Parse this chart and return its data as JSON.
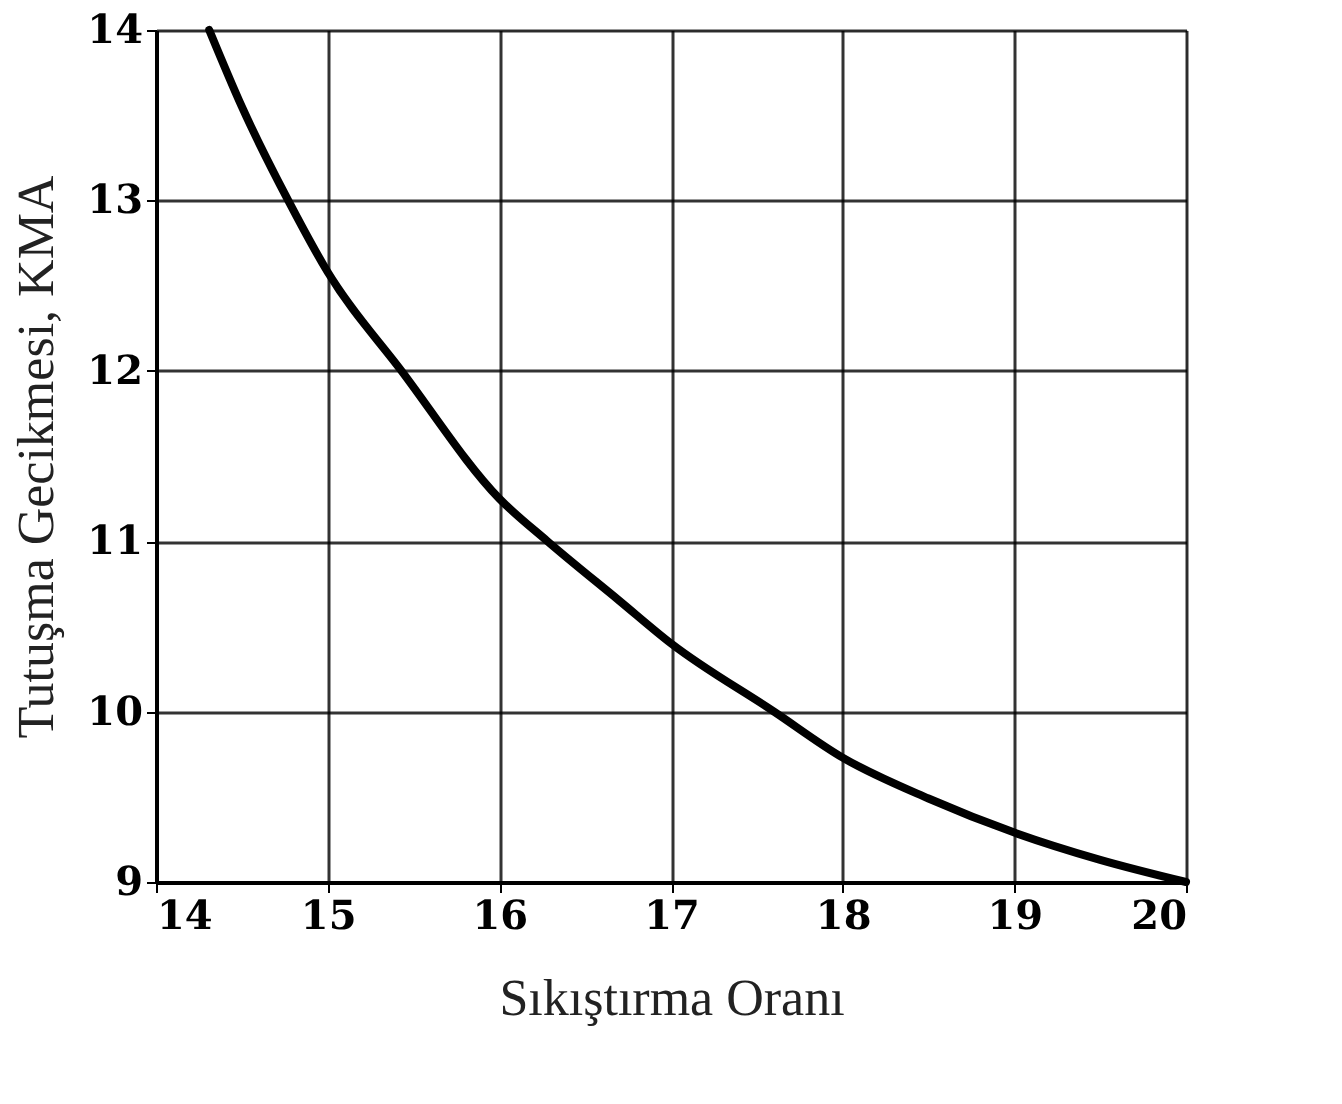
{
  "chart_data": {
    "type": "line",
    "xlabel": "Sıkıştırma Oranı",
    "ylabel": "Tutuşma Gecikmesi, KMA",
    "x": [
      14.31,
      14.5,
      14.77,
      15,
      15.43,
      16,
      16.28,
      16.7,
      17,
      17.6,
      18,
      18.5,
      19,
      19.5,
      20
    ],
    "series": [
      {
        "color": "#000000",
        "values": [
          14,
          13.55,
          13,
          12.58,
          12,
          11.25,
          11,
          10.65,
          10.4,
          10,
          9.73,
          9.49,
          9.29,
          9.13,
          9.0
        ]
      }
    ],
    "xlim": [
      14,
      20
    ],
    "ylim": [
      9,
      14
    ],
    "xticks": [
      14,
      15,
      16,
      17,
      18,
      19,
      20
    ],
    "yticks": [
      9,
      10,
      11,
      12,
      13,
      14
    ],
    "grid": true,
    "legend": false,
    "marker": "none",
    "line_style": "solid"
  }
}
